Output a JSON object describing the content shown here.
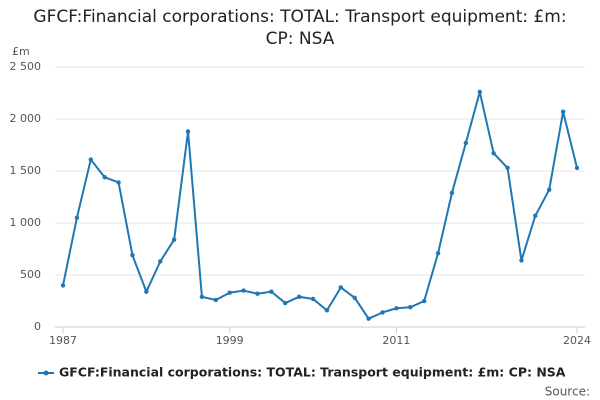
{
  "chart_data": {
    "type": "line",
    "title": "GFCF:Financial corporations: TOTAL: Transport equipment: £m: CP: NSA",
    "y_label": "£m",
    "x": [
      1987,
      1988,
      1989,
      1990,
      1991,
      1992,
      1993,
      1994,
      1995,
      1996,
      1997,
      1998,
      1999,
      2000,
      2001,
      2002,
      2003,
      2004,
      2005,
      2006,
      2007,
      2008,
      2009,
      2010,
      2011,
      2012,
      2013,
      2014,
      2015,
      2016,
      2017,
      2018,
      2019,
      2020,
      2021,
      2022,
      2023,
      2024
    ],
    "series": [
      {
        "name": "GFCF:Financial corporations: TOTAL: Transport equipment: £m: CP: NSA",
        "color": "#1f77b4",
        "values": [
          400,
          1050,
          1610,
          1440,
          1390,
          690,
          340,
          630,
          840,
          1880,
          290,
          260,
          330,
          350,
          320,
          340,
          230,
          290,
          270,
          160,
          380,
          280,
          80,
          140,
          180,
          190,
          250,
          710,
          1290,
          1770,
          2260,
          1670,
          1530,
          640,
          1070,
          1320,
          2070,
          1530
        ]
      }
    ],
    "xlim": [
      1987,
      2024
    ],
    "xticks": [
      1987,
      1999,
      2011,
      2024
    ],
    "ylim": [
      0,
      2500
    ],
    "yticks": [
      0,
      500,
      {
        "value": 1000,
        "label": "1 000"
      },
      {
        "value": 1500,
        "label": "1 500"
      },
      {
        "value": 2000,
        "label": "2 000"
      },
      {
        "value": 2500,
        "label": "2 500"
      }
    ],
    "grid": true,
    "source": "Source:"
  }
}
